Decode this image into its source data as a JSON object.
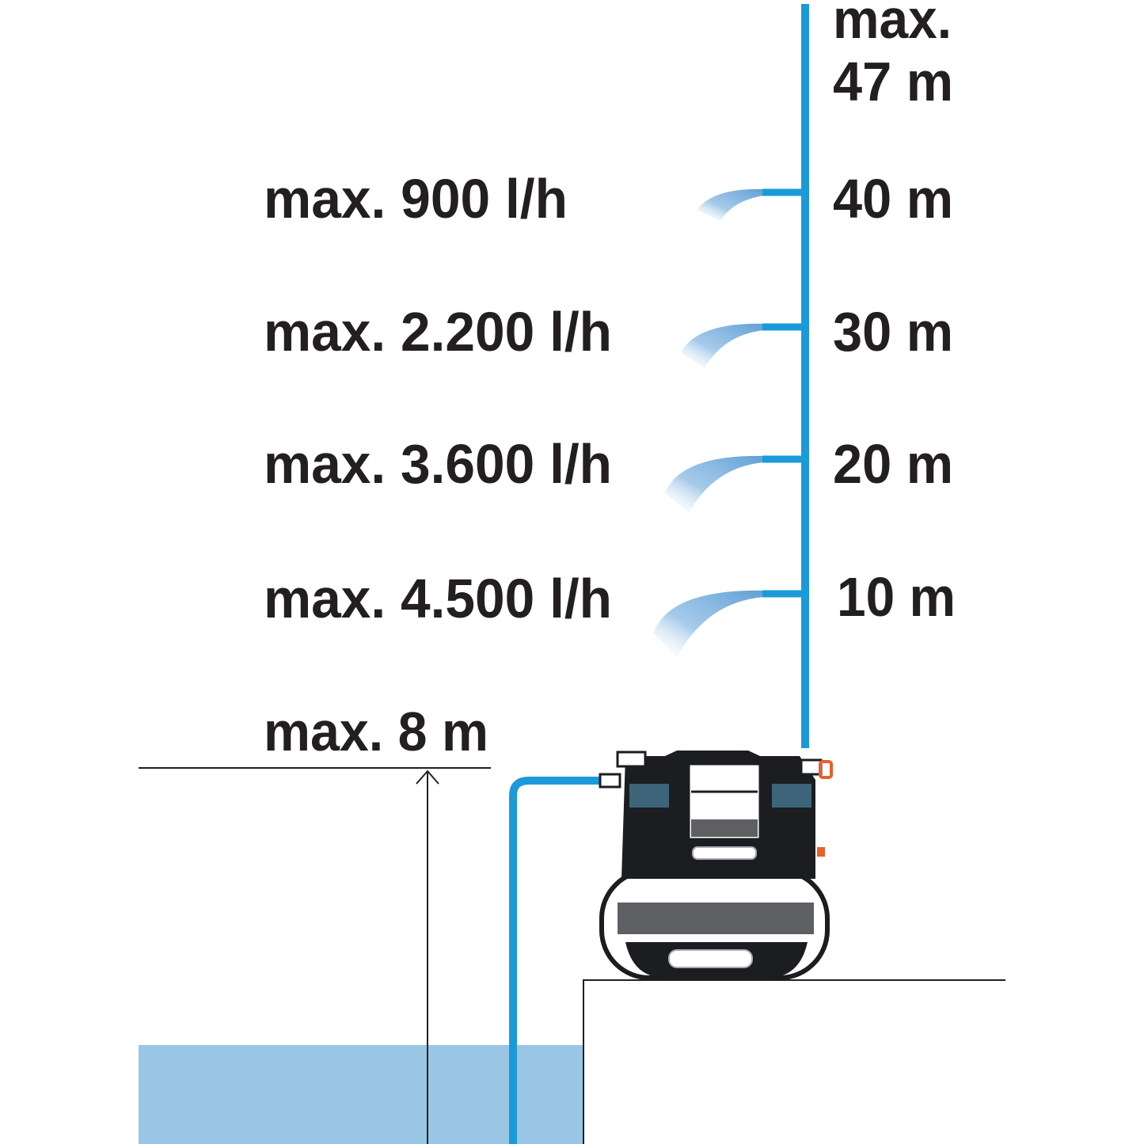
{
  "flow_labels": [
    {
      "text": "max. 900 l/h"
    },
    {
      "text": "max. 2.200 l/h"
    },
    {
      "text": "max. 3.600 l/h"
    },
    {
      "text": "max. 4.500 l/h"
    }
  ],
  "suction_label": "max. 8 m",
  "height_top_label": {
    "line1": "max.",
    "line2": "47 m"
  },
  "height_labels": [
    "40 m",
    "30 m",
    "20 m",
    "10 m"
  ],
  "colors": {
    "pipe": "#1a9ad9",
    "water": "#9ac6e6",
    "spray": "#6fa8d8",
    "text": "#231f20",
    "pump_body": "#1b1d20",
    "pump_accent": "#e8612c"
  }
}
